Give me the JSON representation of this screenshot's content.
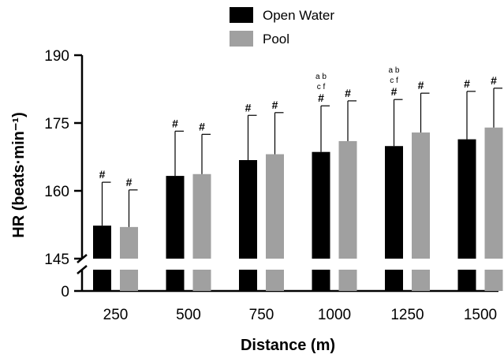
{
  "chart_data": {
    "type": "bar",
    "xlabel": "Distance (m)",
    "ylabel": "HR (beats·min⁻¹)",
    "ylim": [
      145,
      190
    ],
    "y_break_lower": 0,
    "yticks": [
      145,
      160,
      175,
      190
    ],
    "categories": [
      "250",
      "500",
      "750",
      "1000",
      "1250",
      "1500"
    ],
    "series": [
      {
        "name": "Open Water",
        "color": "#000000",
        "values": [
          152.3,
          163.3,
          166.8,
          168.6,
          169.9,
          171.4
        ],
        "error": [
          9.6,
          9.9,
          9.9,
          10.2,
          10.3,
          10.6
        ],
        "annotations": [
          "#",
          "#",
          "#",
          "#",
          "#",
          "#"
        ]
      },
      {
        "name": "Pool",
        "color": "#a0a0a0",
        "values": [
          152.0,
          163.7,
          168.1,
          171.0,
          172.9,
          174.0
        ],
        "error": [
          8.2,
          8.8,
          9.2,
          8.9,
          8.7,
          8.7
        ],
        "annotations": [
          "#",
          "#",
          "#",
          "#",
          "#",
          "#"
        ]
      }
    ],
    "extra_notes": [
      {
        "category": "1000",
        "line1": "a b",
        "line2": "c f"
      },
      {
        "category": "1250",
        "line1": "a b",
        "line2": "c f"
      }
    ],
    "legend": "top"
  }
}
